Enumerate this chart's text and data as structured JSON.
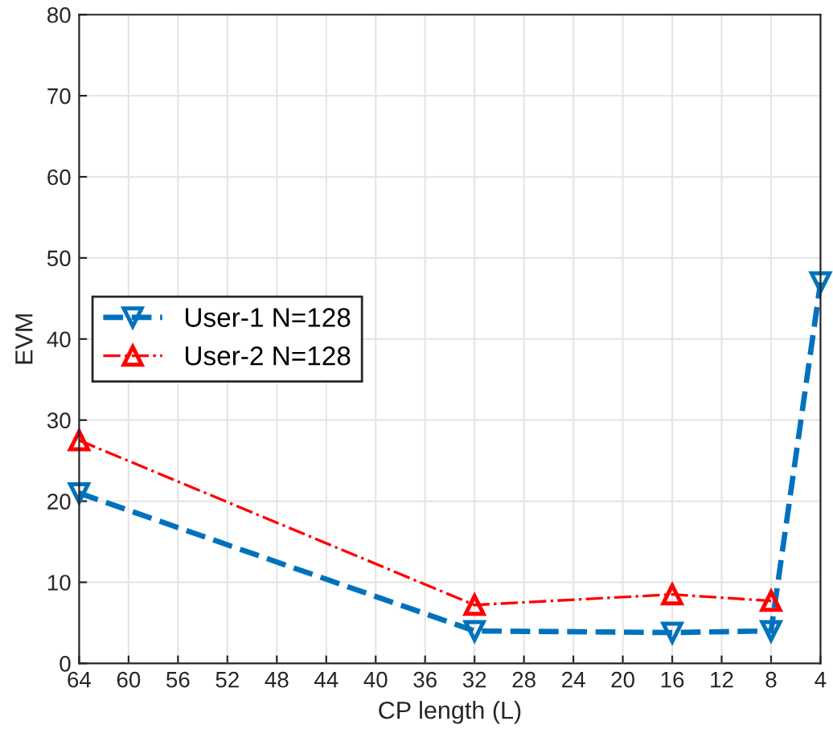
{
  "chart_data": {
    "type": "line",
    "xlabel": "CP length (L)",
    "ylabel": "EVM",
    "x": [
      64,
      32,
      16,
      8,
      4
    ],
    "series": [
      {
        "name": "User-1 N=128",
        "color": "#0072bd",
        "values": [
          21,
          4,
          3.8,
          4,
          47
        ],
        "marker": "triangle_down",
        "line_style": "dashed"
      },
      {
        "name": "User-2 N=128",
        "color": "#ff0000",
        "values": [
          27.5,
          7.2,
          8.5,
          7.7,
          null
        ],
        "marker": "triangle",
        "line_style": "dashdot"
      }
    ],
    "xlim": [
      64,
      4
    ],
    "xticks": [
      64,
      60,
      56,
      52,
      48,
      44,
      40,
      36,
      32,
      28,
      24,
      20,
      16,
      12,
      8,
      4
    ],
    "ylim": [
      0,
      80
    ],
    "yticks": [
      0,
      10,
      20,
      30,
      40,
      50,
      60,
      70,
      80
    ],
    "grid": true,
    "legend": "left"
  }
}
